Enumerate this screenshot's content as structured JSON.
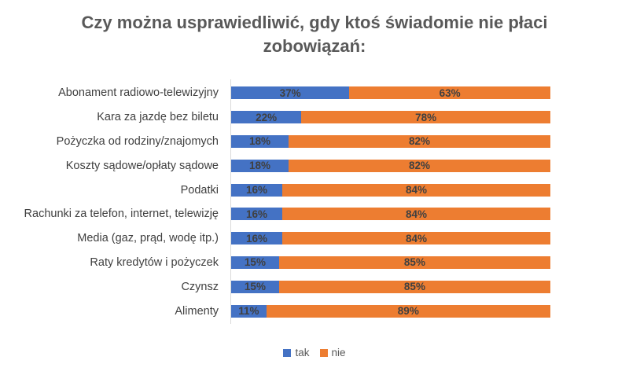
{
  "title": "Czy można usprawiedliwić, gdy ktoś świadomie nie płaci zobowiązań:",
  "colors": {
    "series_tak": "#4472C4",
    "series_nie": "#ED7D31",
    "title_text": "#595959",
    "category_label_text": "#404040",
    "data_label_text": "#404040",
    "axis_line": "#D9D9D9",
    "background": "#FFFFFF"
  },
  "legend": {
    "position": "bottom",
    "items": [
      {
        "label": "tak",
        "color": "#4472C4"
      },
      {
        "label": "nie",
        "color": "#ED7D31"
      }
    ]
  },
  "chart_data": {
    "type": "bar",
    "orientation": "horizontal",
    "stacked": true,
    "unit": "%",
    "title": "Czy można usprawiedliwić, gdy ktoś świadomie nie płaci zobowiązań:",
    "xlabel": "",
    "ylabel": "",
    "xlim": [
      0,
      100
    ],
    "grid": false,
    "data_labels": true,
    "legend_position": "bottom",
    "categories": [
      "Abonament radiowo-telewizyjny",
      "Kara za jazdę bez biletu",
      "Pożyczka od rodziny/znajomych",
      "Koszty sądowe/opłaty sądowe",
      "Podatki",
      "Rachunki za telefon, internet, telewizję",
      "Media (gaz, prąd, wodę itp.)",
      "Raty kredytów i pożyczek",
      "Czynsz",
      "Alimenty"
    ],
    "series": [
      {
        "name": "tak",
        "color": "#4472C4",
        "values": [
          37,
          22,
          18,
          18,
          16,
          16,
          16,
          15,
          15,
          11
        ]
      },
      {
        "name": "nie",
        "color": "#ED7D31",
        "values": [
          63,
          78,
          82,
          82,
          84,
          84,
          84,
          85,
          85,
          89
        ]
      }
    ]
  }
}
